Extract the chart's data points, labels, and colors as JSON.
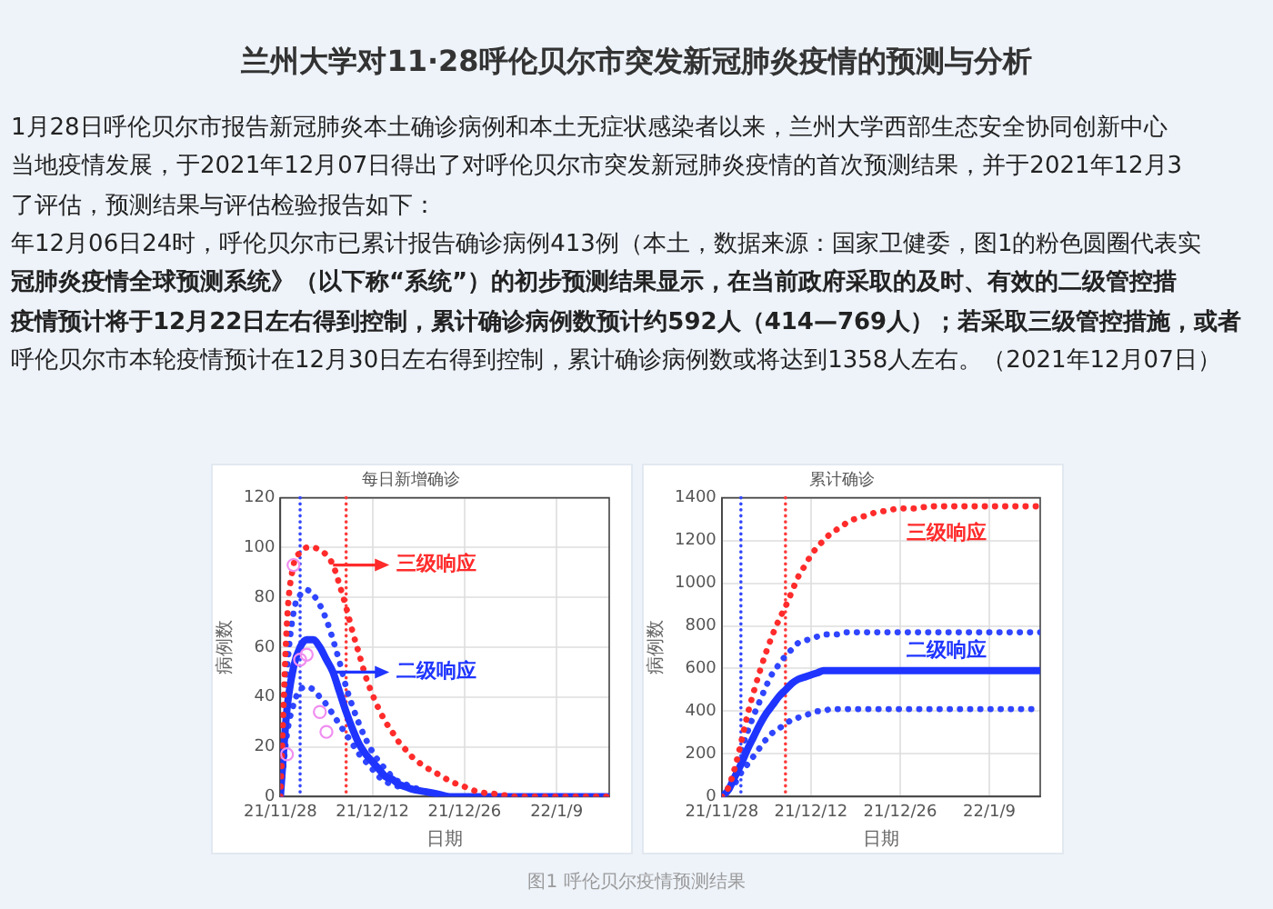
{
  "chart_data": [
    {
      "type": "other",
      "title": "兰州大学对11·28呼伦贝尔市突发新冠肺炎疫情的预测与分析",
      "annotations": [
        "1月28日呼伦贝尔市报告新冠肺炎本土确诊病例和本土无症状感染者以来，兰州大学西部生态安全协同创新中心",
        "当地疫情发展，于2021年12月07日得出了对呼伦贝尔市突发新冠肺炎疫情的首次预测结果，并于2021年12月3",
        "了评估，预测结果与评估检验报告如下：",
        "年12月06日24时，呼伦贝尔市已累计报告确诊病例413例（本土，数据来源：国家卫健委，图1的粉色圆圈代表实",
        "冠肺炎疫情全球预测系统》（以下称“系统”）的初步预测结果显示，在当前政府采取的及时、有效的二级管控措",
        "疫情预计将于12月22日左右得到控制，累计确诊病例数预计约592人（414—769人）；若采取三级管控措施，或者",
        "呼伦贝尔市本轮疫情预计在12月30日左右得到控制，累计确诊病例数或将达到1358人左右。（2021年12月07日）"
      ]
    },
    {
      "type": "line",
      "title": "每日新增确诊",
      "xlabel": "日期",
      "ylabel": "病例数",
      "x": [
        "2021-11-28",
        "2021-11-29",
        "2021-11-30",
        "2021-12-01",
        "2021-12-02",
        "2021-12-03",
        "2021-12-04",
        "2021-12-05",
        "2021-12-06",
        "2021-12-07",
        "2021-12-08",
        "2021-12-09",
        "2021-12-10",
        "2021-12-11",
        "2021-12-12",
        "2021-12-13",
        "2021-12-14",
        "2021-12-15",
        "2021-12-16",
        "2021-12-17",
        "2021-12-18",
        "2021-12-20",
        "2021-12-22",
        "2021-12-24",
        "2021-12-26",
        "2021-12-28",
        "2021-12-31",
        "2022-01-03",
        "2022-01-07",
        "2022-01-11",
        "2022-01-15",
        "2022-01-17"
      ],
      "series": [
        {
          "type": "scatter",
          "color": "#f08ef0",
          "marker": "circle",
          "x": [
            "2021-11-29",
            "2021-11-30",
            "2021-12-01",
            "2021-12-02",
            "2021-12-04",
            "2021-12-05"
          ],
          "values": [
            17,
            93,
            55,
            57,
            34,
            26
          ]
        },
        {
          "name": "三级响应",
          "color": "#ff2b2b",
          "line_style": "dotted",
          "values": [
            0,
            70,
            93,
            98,
            100,
            100,
            99,
            97,
            93,
            85,
            76,
            66,
            57,
            48,
            41,
            35,
            30,
            26,
            22,
            19,
            16,
            12,
            9,
            6,
            4,
            2,
            1,
            0,
            0,
            0,
            0,
            0
          ]
        },
        {
          "name": "二级响应",
          "color": "#1f35ff",
          "line_style": "solid",
          "values": [
            0,
            35,
            52,
            60,
            63,
            63,
            60,
            55,
            50,
            42,
            34,
            27,
            21,
            17,
            14,
            11,
            8,
            7,
            5,
            4,
            3,
            2,
            1,
            0,
            0,
            0,
            0,
            0,
            0,
            0,
            0,
            0
          ]
        },
        {
          "color": "#2f45ff",
          "line_style": "dotted",
          "values": [
            0,
            50,
            74,
            81,
            83,
            81,
            77,
            71,
            63,
            54,
            44,
            36,
            29,
            23,
            18,
            14,
            11,
            8,
            6,
            5,
            4,
            2,
            1,
            null,
            null,
            null,
            null,
            null,
            null,
            null,
            null,
            null
          ]
        },
        {
          "color": "#2f45ff",
          "line_style": "dotted",
          "values": [
            0,
            25,
            37,
            43,
            44,
            43,
            40,
            37,
            33,
            29,
            25,
            21,
            17,
            14,
            11,
            8,
            6,
            5,
            4,
            3,
            null,
            null,
            null,
            null,
            null,
            null,
            null,
            null,
            null,
            null,
            null,
            null
          ]
        }
      ],
      "xlim": [
        "2021-11-28",
        "2022-01-17"
      ],
      "xticks": [
        {
          "value": "2021-11-28",
          "label": "21/11/28"
        },
        {
          "value": "2021-12-12",
          "label": "21/12/12"
        },
        {
          "value": "2021-12-26",
          "label": "21/12/26"
        },
        {
          "value": "2022-01-09",
          "label": "22/1/9"
        }
      ],
      "ylim": [
        0,
        120
      ],
      "yticks": [
        0,
        20,
        40,
        60,
        80,
        100,
        120
      ],
      "ref_lines": [
        {
          "axis": "x",
          "value": "2021-12-01",
          "color": "#3347ff",
          "line_style": "dotted"
        },
        {
          "axis": "x",
          "value": "2021-12-08",
          "color": "#ff3b3b",
          "line_style": "dotted"
        }
      ],
      "grid": true,
      "legend": "top left"
    },
    {
      "type": "line",
      "title": "累计确诊",
      "xlabel": "日期",
      "ylabel": "病例数",
      "x": [
        "2021-11-28",
        "2021-11-29",
        "2021-11-30",
        "2021-12-01",
        "2021-12-02",
        "2021-12-03",
        "2021-12-04",
        "2021-12-05",
        "2021-12-06",
        "2021-12-07",
        "2021-12-08",
        "2021-12-09",
        "2021-12-10",
        "2021-12-11",
        "2021-12-12",
        "2021-12-13",
        "2021-12-14",
        "2021-12-15",
        "2021-12-16",
        "2021-12-17",
        "2021-12-18",
        "2021-12-20",
        "2021-12-22",
        "2021-12-24",
        "2021-12-26",
        "2021-12-28",
        "2021-12-31",
        "2022-01-03",
        "2022-01-07",
        "2022-01-11",
        "2022-01-15",
        "2022-01-17"
      ],
      "series": [
        {
          "name": "三级响应",
          "color": "#ff2b2b",
          "line_style": "dotted",
          "values": [
            0,
            40,
            130,
            250,
            380,
            490,
            590,
            680,
            760,
            830,
            890,
            960,
            1030,
            1080,
            1130,
            1170,
            1200,
            1230,
            1250,
            1270,
            1290,
            1310,
            1330,
            1340,
            1350,
            1350,
            1360,
            1360,
            1360,
            1360,
            1360,
            1360
          ]
        },
        {
          "name": "二级响应",
          "color": "#1f35ff",
          "line_style": "solid",
          "values": [
            0,
            30,
            90,
            150,
            220,
            280,
            340,
            390,
            430,
            470,
            500,
            530,
            550,
            560,
            570,
            580,
            590,
            590,
            590,
            590,
            590,
            590,
            590,
            590,
            590,
            590,
            590,
            590,
            590,
            590,
            590,
            590
          ]
        },
        {
          "color": "#2f45ff",
          "line_style": "dotted",
          "values": [
            0,
            40,
            120,
            210,
            300,
            380,
            450,
            520,
            580,
            620,
            660,
            690,
            720,
            730,
            740,
            750,
            760,
            760,
            760,
            770,
            770,
            770,
            770,
            770,
            770,
            770,
            770,
            770,
            770,
            770,
            770,
            770
          ]
        },
        {
          "color": "#2f45ff",
          "line_style": "dotted",
          "values": [
            0,
            30,
            60,
            110,
            150,
            190,
            230,
            270,
            300,
            320,
            340,
            360,
            370,
            380,
            390,
            400,
            400,
            410,
            410,
            410,
            410,
            410,
            410,
            410,
            410,
            410,
            410,
            410,
            410,
            410,
            410,
            410
          ]
        }
      ],
      "xlim": [
        "2021-11-28",
        "2022-01-17"
      ],
      "xticks": [
        {
          "value": "2021-11-28",
          "label": "21/11/28"
        },
        {
          "value": "2021-12-12",
          "label": "21/12/12"
        },
        {
          "value": "2021-12-26",
          "label": "21/12/26"
        },
        {
          "value": "2022-01-09",
          "label": "22/1/9"
        }
      ],
      "ylim": [
        0,
        1400
      ],
      "yticks": [
        0,
        200,
        400,
        600,
        800,
        1000,
        1200,
        1400
      ],
      "ref_lines": [
        {
          "axis": "x",
          "value": "2021-12-01",
          "color": "#3347ff",
          "line_style": "dotted"
        },
        {
          "axis": "x",
          "value": "2021-12-08",
          "color": "#ff3b3b",
          "line_style": "dotted"
        }
      ],
      "grid": true
    },
    {
      "type": "other",
      "annotations": [
        "图1 呼伦贝尔疫情预测结果"
      ]
    }
  ]
}
